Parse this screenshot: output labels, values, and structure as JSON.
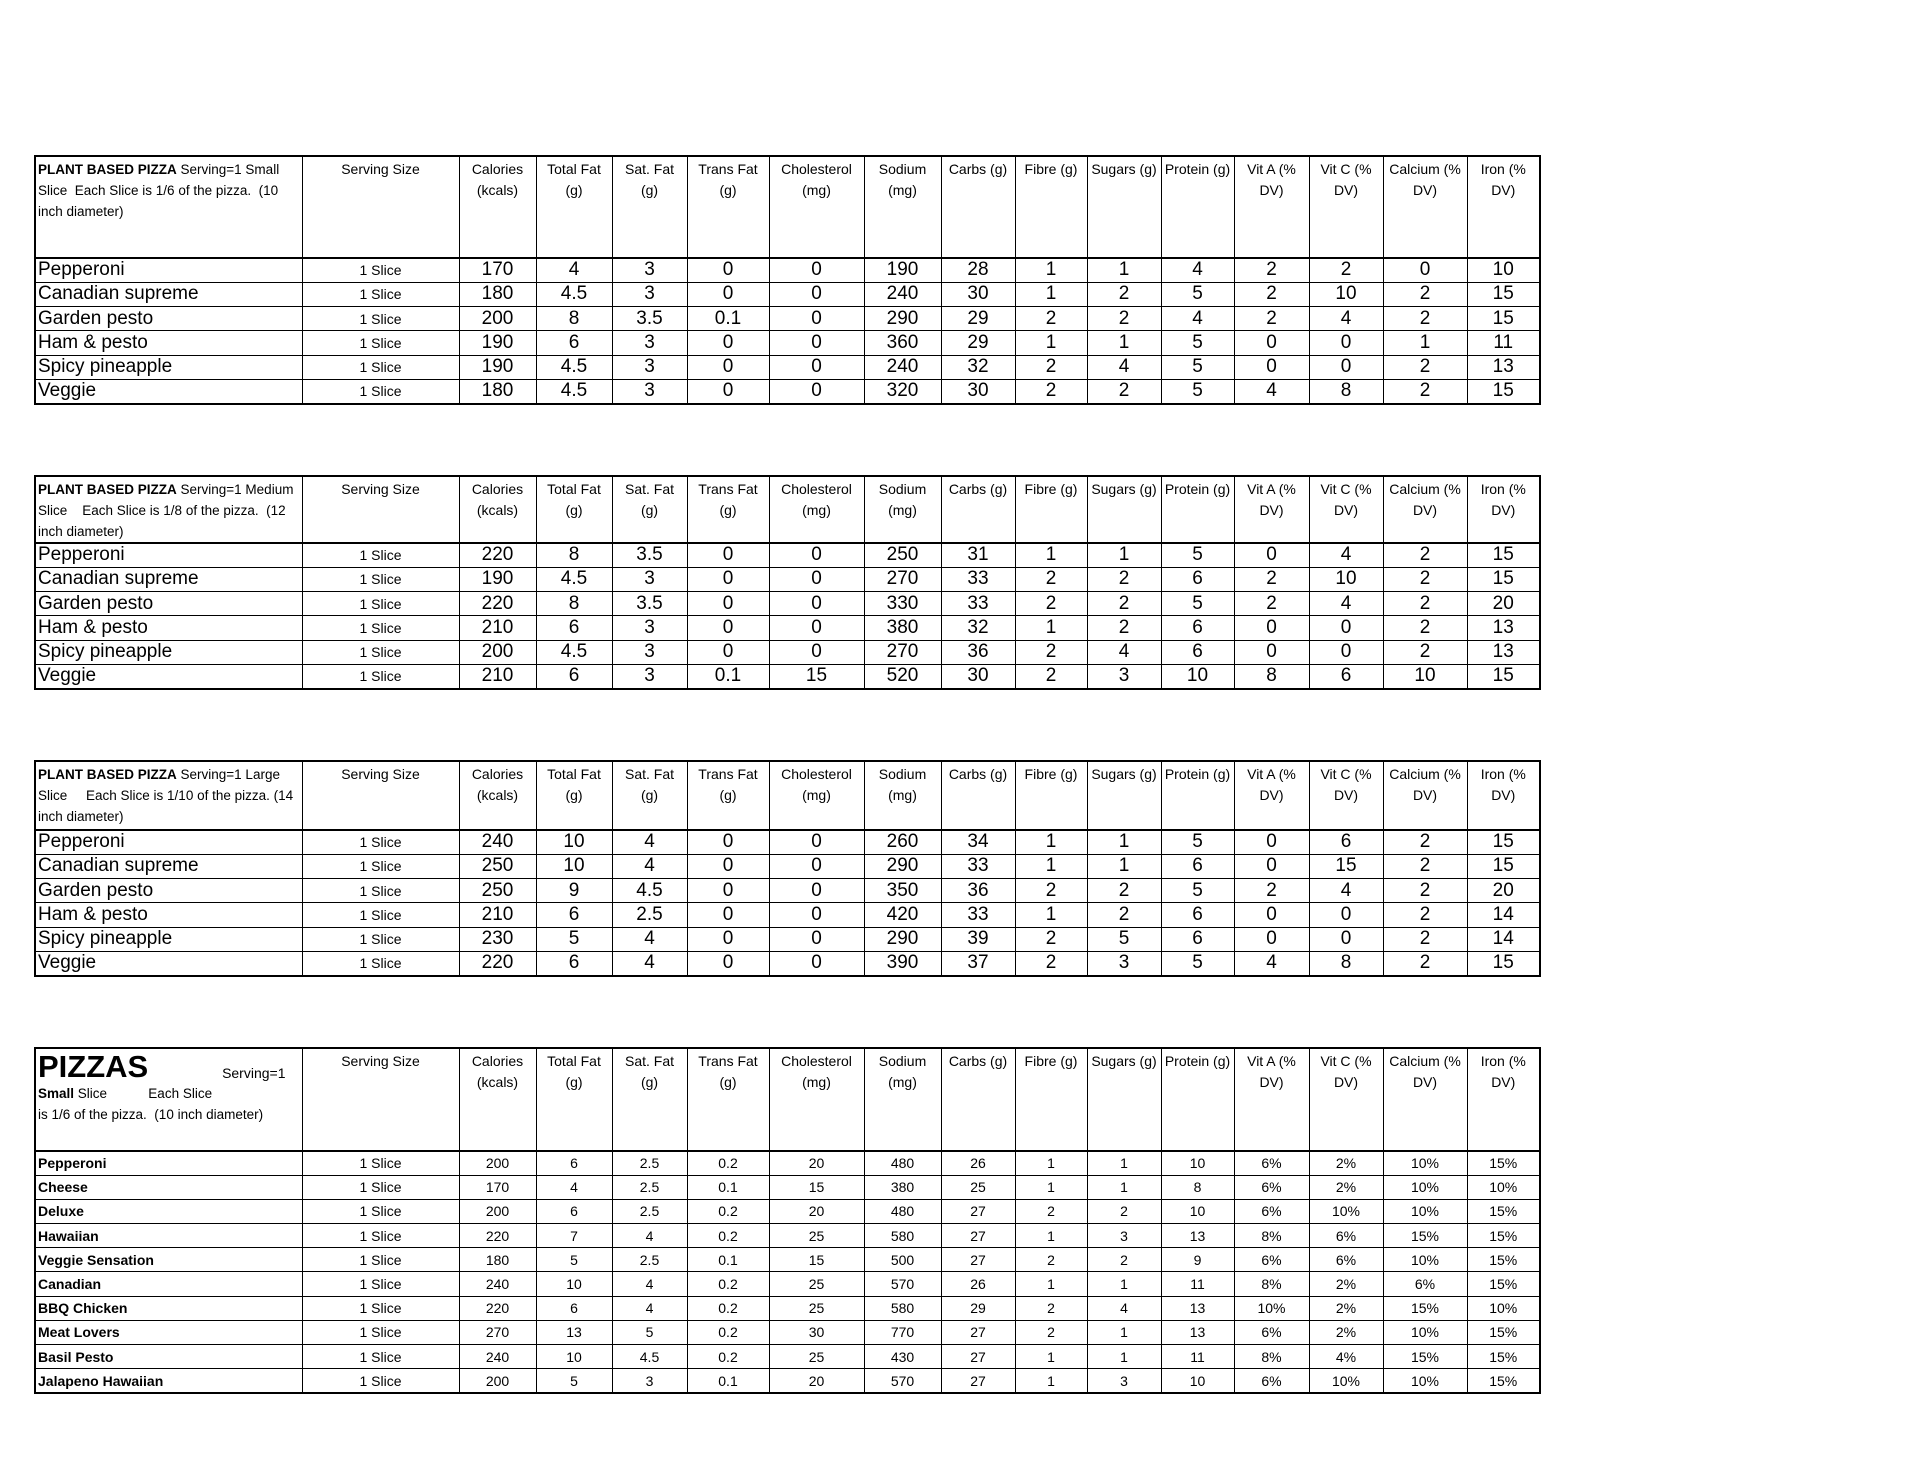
{
  "columns": [
    "Serving Size",
    "Calories (kcals)",
    "Total Fat (g)",
    "Sat. Fat (g)",
    "Trans Fat (g)",
    "Cholesterol (mg)",
    "Sodium (mg)",
    "Carbs (g)",
    "Fibre (g)",
    "Sugars (g)",
    "Protein (g)",
    "Vit A (% DV)",
    "Vit C (% DV)",
    "Calcium (% DV)",
    "Iron (% DV)"
  ],
  "tables": [
    {
      "title_bold": "PLANT BASED PIZZA",
      "title_rest": " Serving=1 Small Slice  Each Slice is 1/6 of the pizza.  (10 inch diameter)",
      "rows": [
        [
          "Pepperoni",
          "1 Slice",
          "170",
          "4",
          "3",
          "0",
          "0",
          "190",
          "28",
          "1",
          "1",
          "4",
          "2",
          "2",
          "0",
          "10"
        ],
        [
          "Canadian supreme",
          "1 Slice",
          "180",
          "4.5",
          "3",
          "0",
          "0",
          "240",
          "30",
          "1",
          "2",
          "5",
          "2",
          "10",
          "2",
          "15"
        ],
        [
          "Garden pesto",
          "1 Slice",
          "200",
          "8",
          "3.5",
          "0.1",
          "0",
          "290",
          "29",
          "2",
          "2",
          "4",
          "2",
          "4",
          "2",
          "15"
        ],
        [
          "Ham & pesto",
          "1 Slice",
          "190",
          "6",
          "3",
          "0",
          "0",
          "360",
          "29",
          "1",
          "1",
          "5",
          "0",
          "0",
          "1",
          "11"
        ],
        [
          "Spicy pineapple",
          "1 Slice",
          "190",
          "4.5",
          "3",
          "0",
          "0",
          "240",
          "32",
          "2",
          "4",
          "5",
          "0",
          "0",
          "2",
          "13"
        ],
        [
          "Veggie",
          "1 Slice",
          "180",
          "4.5",
          "3",
          "0",
          "0",
          "320",
          "30",
          "2",
          "2",
          "5",
          "4",
          "8",
          "2",
          "15"
        ]
      ]
    },
    {
      "title_bold": "PLANT BASED PIZZA",
      "title_rest": " Serving=1 Medium Slice    Each Slice is 1/8 of the pizza.  (12 inch diameter)",
      "rows": [
        [
          "Pepperoni",
          "1 Slice",
          "220",
          "8",
          "3.5",
          "0",
          "0",
          "250",
          "31",
          "1",
          "1",
          "5",
          "0",
          "4",
          "2",
          "15"
        ],
        [
          "Canadian supreme",
          "1 Slice",
          "190",
          "4.5",
          "3",
          "0",
          "0",
          "270",
          "33",
          "2",
          "2",
          "6",
          "2",
          "10",
          "2",
          "15"
        ],
        [
          "Garden pesto",
          "1 Slice",
          "220",
          "8",
          "3.5",
          "0",
          "0",
          "330",
          "33",
          "2",
          "2",
          "5",
          "2",
          "4",
          "2",
          "20"
        ],
        [
          "Ham & pesto",
          "1 Slice",
          "210",
          "6",
          "3",
          "0",
          "0",
          "380",
          "32",
          "1",
          "2",
          "6",
          "0",
          "0",
          "2",
          "13"
        ],
        [
          "Spicy pineapple",
          "1 Slice",
          "200",
          "4.5",
          "3",
          "0",
          "0",
          "270",
          "36",
          "2",
          "4",
          "6",
          "0",
          "0",
          "2",
          "13"
        ],
        [
          "Veggie",
          "1 Slice",
          "210",
          "6",
          "3",
          "0.1",
          "15",
          "520",
          "30",
          "2",
          "3",
          "10",
          "8",
          "6",
          "10",
          "15"
        ]
      ]
    },
    {
      "title_bold": "PLANT BASED PIZZA",
      "title_rest": " Serving=1 Large Slice     Each Slice is 1/10 of the pizza. (14 inch diameter)",
      "rows": [
        [
          "Pepperoni",
          "1 Slice",
          "240",
          "10",
          "4",
          "0",
          "0",
          "260",
          "34",
          "1",
          "1",
          "5",
          "0",
          "6",
          "2",
          "15"
        ],
        [
          "Canadian supreme",
          "1 Slice",
          "250",
          "10",
          "4",
          "0",
          "0",
          "290",
          "33",
          "1",
          "1",
          "6",
          "0",
          "15",
          "2",
          "15"
        ],
        [
          "Garden pesto",
          "1 Slice",
          "250",
          "9",
          "4.5",
          "0",
          "0",
          "350",
          "36",
          "2",
          "2",
          "5",
          "2",
          "4",
          "2",
          "20"
        ],
        [
          "Ham & pesto",
          "1 Slice",
          "210",
          "6",
          "2.5",
          "0",
          "0",
          "420",
          "33",
          "1",
          "2",
          "6",
          "0",
          "0",
          "2",
          "14"
        ],
        [
          "Spicy pineapple",
          "1 Slice",
          "230",
          "5",
          "4",
          "0",
          "0",
          "290",
          "39",
          "2",
          "5",
          "6",
          "0",
          "0",
          "2",
          "14"
        ],
        [
          "Veggie",
          "1 Slice",
          "220",
          "6",
          "4",
          "0",
          "0",
          "390",
          "37",
          "2",
          "3",
          "5",
          "4",
          "8",
          "2",
          "15"
        ]
      ]
    },
    {
      "title_big": "PIZZAS",
      "title_serving": "Serving=1",
      "title_bold": "Small",
      "title_rest": " Slice           Each Slice is 1/6 of the pizza.  (10 inch diameter)",
      "rows": [
        [
          "Pepperoni",
          "1 Slice",
          "200",
          "6",
          "2.5",
          "0.2",
          "20",
          "480",
          "26",
          "1",
          "1",
          "10",
          "6%",
          "2%",
          "10%",
          "15%"
        ],
        [
          "Cheese",
          "1 Slice",
          "170",
          "4",
          "2.5",
          "0.1",
          "15",
          "380",
          "25",
          "1",
          "1",
          "8",
          "6%",
          "2%",
          "10%",
          "10%"
        ],
        [
          "Deluxe",
          "1 Slice",
          "200",
          "6",
          "2.5",
          "0.2",
          "20",
          "480",
          "27",
          "2",
          "2",
          "10",
          "6%",
          "10%",
          "10%",
          "15%"
        ],
        [
          "Hawaiian",
          "1 Slice",
          "220",
          "7",
          "4",
          "0.2",
          "25",
          "580",
          "27",
          "1",
          "3",
          "13",
          "8%",
          "6%",
          "15%",
          "15%"
        ],
        [
          "Veggie Sensation",
          "1 Slice",
          "180",
          "5",
          "2.5",
          "0.1",
          "15",
          "500",
          "27",
          "2",
          "2",
          "9",
          "6%",
          "6%",
          "10%",
          "15%"
        ],
        [
          "Canadian",
          "1 Slice",
          "240",
          "10",
          "4",
          "0.2",
          "25",
          "570",
          "26",
          "1",
          "1",
          "11",
          "8%",
          "2%",
          "6%",
          "15%"
        ],
        [
          "BBQ Chicken",
          "1 Slice",
          "220",
          "6",
          "4",
          "0.2",
          "25",
          "580",
          "29",
          "2",
          "4",
          "13",
          "10%",
          "2%",
          "15%",
          "10%"
        ],
        [
          "Meat Lovers",
          "1 Slice",
          "270",
          "13",
          "5",
          "0.2",
          "30",
          "770",
          "27",
          "2",
          "1",
          "13",
          "6%",
          "2%",
          "10%",
          "15%"
        ],
        [
          "Basil Pesto",
          "1 Slice",
          "240",
          "10",
          "4.5",
          "0.2",
          "25",
          "430",
          "27",
          "1",
          "1",
          "11",
          "8%",
          "4%",
          "15%",
          "15%"
        ],
        [
          "Jalapeno Hawaiian",
          "1 Slice",
          "200",
          "5",
          "3",
          "0.1",
          "20",
          "570",
          "27",
          "1",
          "3",
          "10",
          "6%",
          "10%",
          "10%",
          "15%"
        ]
      ]
    }
  ]
}
